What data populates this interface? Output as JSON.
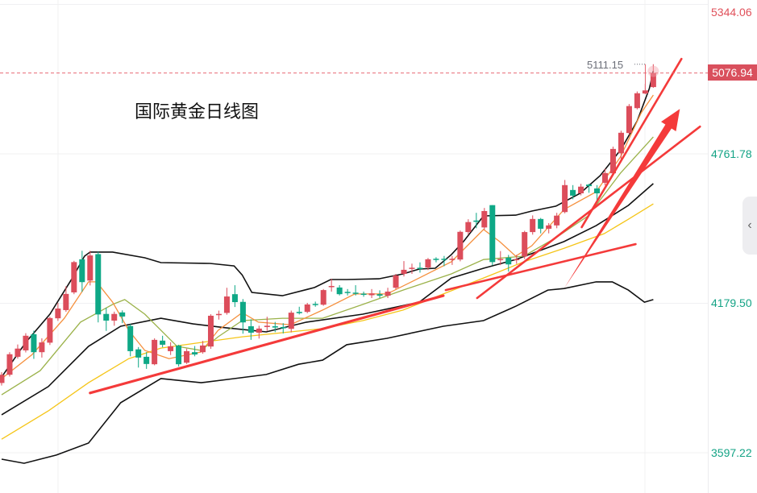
{
  "chart_data": {
    "type": "candlestick",
    "title": "国际黄金日线图",
    "y_ticks": [
      "5344.06",
      "4761.78",
      "4179.50",
      "3597.22"
    ],
    "y_tick_values": [
      5344.06,
      4761.78,
      4179.5,
      3597.22
    ],
    "ylim": [
      3540,
      5370
    ],
    "current_price": "5076.94",
    "current_price_value": 5076.94,
    "high_marker": "5111.15",
    "high_marker_value": 5111.15,
    "colors": {
      "up": "#dc4d5b",
      "down": "#0ea886",
      "upper_axis": "#e0505a",
      "axis_text": "#13a385",
      "trendline": "#f43a3a",
      "band": "#111111",
      "ma_yellow": "#f5c518",
      "ma_orange": "#f5903d",
      "ma_olive": "#9bb24a"
    },
    "candles_ohlc": [
      [
        3869,
        3911,
        3859,
        3901
      ],
      [
        3901,
        3989,
        3894,
        3981
      ],
      [
        3971,
        4019,
        3964,
        4003
      ],
      [
        3996,
        4063,
        3988,
        4053
      ],
      [
        4059,
        4073,
        3963,
        3989
      ],
      [
        3989,
        4043,
        3968,
        4027
      ],
      [
        4026,
        4127,
        4017,
        4122
      ],
      [
        4121,
        4181,
        4111,
        4159
      ],
      [
        4153,
        4246,
        4146,
        4216
      ],
      [
        4222,
        4345,
        4215,
        4340
      ],
      [
        4351,
        4384,
        4224,
        4262
      ],
      [
        4268,
        4384,
        4249,
        4366
      ],
      [
        4371,
        4380,
        4105,
        4136
      ],
      [
        4138,
        4162,
        4072,
        4112
      ],
      [
        4112,
        4147,
        4092,
        4138
      ],
      [
        4144,
        4152,
        4102,
        4128
      ],
      [
        4091,
        4098,
        3973,
        3993
      ],
      [
        4000,
        4009,
        3929,
        3968
      ],
      [
        3971,
        3989,
        3924,
        3943
      ],
      [
        3942,
        4043,
        3938,
        4037
      ],
      [
        4034,
        4053,
        4008,
        4018
      ],
      [
        3993,
        4028,
        3978,
        4012
      ],
      [
        4015,
        4018,
        3933,
        3942
      ],
      [
        3948,
        4003,
        3943,
        3993
      ],
      [
        3989,
        4013,
        3973,
        3980
      ],
      [
        3989,
        4033,
        3983,
        4015
      ],
      [
        4011,
        4137,
        4002,
        4131
      ],
      [
        4134,
        4151,
        4116,
        4138
      ],
      [
        4142,
        4240,
        4135,
        4206
      ],
      [
        4215,
        4250,
        4165,
        4184
      ],
      [
        4185,
        4196,
        4061,
        4105
      ],
      [
        4090,
        4117,
        4037,
        4065
      ],
      [
        4065,
        4092,
        4042,
        4081
      ],
      [
        4087,
        4127,
        4072,
        4092
      ],
      [
        4090,
        4107,
        4067,
        4085
      ],
      [
        4087,
        4102,
        4062,
        4082
      ],
      [
        4080,
        4151,
        4066,
        4143
      ],
      [
        4146,
        4166,
        4136,
        4141
      ],
      [
        4146,
        4181,
        4141,
        4175
      ],
      [
        4177,
        4186,
        4166,
        4173
      ],
      [
        4174,
        4235,
        4170,
        4231
      ],
      [
        4243,
        4275,
        4225,
        4247
      ],
      [
        4241,
        4250,
        4210,
        4215
      ],
      [
        4224,
        4235,
        4210,
        4220
      ],
      [
        4221,
        4250,
        4210,
        4217
      ],
      [
        4217,
        4225,
        4205,
        4213
      ],
      [
        4211,
        4235,
        4200,
        4218
      ],
      [
        4215,
        4230,
        4200,
        4209
      ],
      [
        4209,
        4240,
        4200,
        4225
      ],
      [
        4240,
        4294,
        4234,
        4288
      ],
      [
        4294,
        4344,
        4284,
        4310
      ],
      [
        4314,
        4334,
        4294,
        4318
      ],
      [
        4318,
        4339,
        4299,
        4314
      ],
      [
        4319,
        4356,
        4309,
        4351
      ],
      [
        4353,
        4359,
        4339,
        4349
      ],
      [
        4353,
        4364,
        4324,
        4349
      ],
      [
        4349,
        4364,
        4329,
        4353
      ],
      [
        4350,
        4463,
        4343,
        4458
      ],
      [
        4457,
        4507,
        4447,
        4496
      ],
      [
        4502,
        4532,
        4472,
        4497
      ],
      [
        4475,
        4551,
        4466,
        4539
      ],
      [
        4562,
        4562,
        4327,
        4340
      ],
      [
        4348,
        4383,
        4328,
        4352
      ],
      [
        4357,
        4368,
        4303,
        4331
      ],
      [
        4348,
        4368,
        4333,
        4352
      ],
      [
        4362,
        4462,
        4352,
        4457
      ],
      [
        4457,
        4522,
        4447,
        4508
      ],
      [
        4508,
        4512,
        4452,
        4470
      ],
      [
        4470,
        4492,
        4452,
        4483
      ],
      [
        4483,
        4532,
        4472,
        4521
      ],
      [
        4535,
        4660,
        4530,
        4640
      ],
      [
        4621,
        4640,
        4585,
        4599
      ],
      [
        4608,
        4645,
        4600,
        4634
      ],
      [
        4642,
        4645,
        4610,
        4636
      ],
      [
        4627,
        4640,
        4570,
        4608
      ],
      [
        4649,
        4704,
        4639,
        4687
      ],
      [
        4686,
        4790,
        4678,
        4781
      ],
      [
        4764,
        4852,
        4737,
        4844
      ],
      [
        4843,
        4956,
        4836,
        4948
      ],
      [
        4940,
        5005,
        4935,
        4998
      ],
      [
        4997,
        5034,
        4994,
        5009
      ],
      [
        5022,
        5111.15,
        5019,
        5076.94
      ]
    ],
    "series": [
      {
        "name": "boll-upper",
        "color_key": "band",
        "points": [
          [
            0,
            3892
          ],
          [
            3,
            4027
          ],
          [
            6,
            4137
          ],
          [
            8.8,
            4278
          ],
          [
            10.3,
            4363
          ],
          [
            11,
            4379
          ],
          [
            13.8,
            4379
          ],
          [
            17.8,
            4357
          ],
          [
            19.8,
            4338
          ],
          [
            25.9,
            4335
          ],
          [
            28.9,
            4325
          ],
          [
            29.9,
            4290
          ],
          [
            31.1,
            4222
          ],
          [
            34.9,
            4209
          ],
          [
            38.9,
            4241
          ],
          [
            40.9,
            4272
          ],
          [
            42.9,
            4272
          ],
          [
            46.9,
            4275
          ],
          [
            49.9,
            4294
          ],
          [
            51.9,
            4313
          ],
          [
            53.9,
            4316
          ],
          [
            55.9,
            4369
          ],
          [
            57.4,
            4420
          ],
          [
            59.9,
            4520
          ],
          [
            63.9,
            4523
          ],
          [
            65.9,
            4539
          ],
          [
            68.9,
            4558
          ],
          [
            71.9,
            4608
          ],
          [
            74.4,
            4677
          ],
          [
            77,
            4780
          ],
          [
            79,
            4890
          ],
          [
            80.5,
            5016
          ],
          [
            81,
            5085
          ]
        ]
      },
      {
        "name": "boll-middle",
        "color_key": "band",
        "points": [
          [
            0,
            3745
          ],
          [
            5.8,
            3855
          ],
          [
            10.8,
            4012
          ],
          [
            14.8,
            4090
          ],
          [
            19.8,
            4121
          ],
          [
            23.8,
            4099
          ],
          [
            27.9,
            4084
          ],
          [
            32.9,
            4068
          ],
          [
            37.9,
            4106
          ],
          [
            44.9,
            4137
          ],
          [
            51.9,
            4184
          ],
          [
            55.9,
            4278
          ],
          [
            59.9,
            4316
          ],
          [
            63.9,
            4350
          ],
          [
            69.9,
            4420
          ],
          [
            73.9,
            4482
          ],
          [
            77.9,
            4561
          ],
          [
            81,
            4646
          ]
        ]
      },
      {
        "name": "boll-lower",
        "color_key": "band",
        "points": [
          [
            0,
            3572
          ],
          [
            2.8,
            3556
          ],
          [
            6.8,
            3588
          ],
          [
            10.8,
            3635
          ],
          [
            14.8,
            3792
          ],
          [
            19.8,
            3886
          ],
          [
            24.8,
            3870
          ],
          [
            28.9,
            3886
          ],
          [
            32.9,
            3902
          ],
          [
            36.9,
            3942
          ],
          [
            39.9,
            3958
          ],
          [
            42.9,
            4018
          ],
          [
            47.9,
            4043
          ],
          [
            54.9,
            4090
          ],
          [
            59.9,
            4112
          ],
          [
            63.9,
            4168
          ],
          [
            67.9,
            4231
          ],
          [
            69.9,
            4237
          ],
          [
            73.9,
            4263
          ],
          [
            75.9,
            4263
          ],
          [
            77.9,
            4231
          ],
          [
            79.9,
            4184
          ],
          [
            81,
            4194
          ]
        ]
      },
      {
        "name": "ma-yellow",
        "color_key": "ma_yellow",
        "points": [
          [
            0,
            3650
          ],
          [
            5.8,
            3760
          ],
          [
            10.8,
            3870
          ],
          [
            15.8,
            3964
          ],
          [
            19.8,
            4005
          ],
          [
            24.8,
            4027
          ],
          [
            29.9,
            4049
          ],
          [
            34.9,
            4065
          ],
          [
            39.9,
            4081
          ],
          [
            44.9,
            4112
          ],
          [
            49.9,
            4153
          ],
          [
            54.9,
            4216
          ],
          [
            59.9,
            4278
          ],
          [
            64.9,
            4341
          ],
          [
            69.9,
            4394
          ],
          [
            74.9,
            4451
          ],
          [
            77.9,
            4507
          ],
          [
            81,
            4567
          ]
        ]
      },
      {
        "name": "ma-olive",
        "color_key": "ma_olive",
        "points": [
          [
            0,
            3823
          ],
          [
            4.8,
            3917
          ],
          [
            9.8,
            4106
          ],
          [
            13.8,
            4175
          ],
          [
            15.3,
            4194
          ],
          [
            17.8,
            4137
          ],
          [
            21.8,
            4012
          ],
          [
            24.8,
            3996
          ],
          [
            26.9,
            4049
          ],
          [
            29.9,
            4112
          ],
          [
            34.9,
            4121
          ],
          [
            39.9,
            4121
          ],
          [
            44.9,
            4175
          ],
          [
            49.9,
            4231
          ],
          [
            55.9,
            4294
          ],
          [
            59.9,
            4350
          ],
          [
            64.9,
            4363
          ],
          [
            68.9,
            4435
          ],
          [
            72.9,
            4520
          ],
          [
            76.9,
            4686
          ],
          [
            81,
            4828
          ]
        ]
      },
      {
        "name": "ma-orange",
        "color_key": "ma_orange",
        "points": [
          [
            0,
            3886
          ],
          [
            3.8,
            3980
          ],
          [
            7.8,
            4121
          ],
          [
            10.8,
            4263
          ],
          [
            11.8,
            4263
          ],
          [
            13.8,
            4184
          ],
          [
            15.8,
            4074
          ],
          [
            17.8,
            3996
          ],
          [
            20.8,
            3964
          ],
          [
            24.8,
            3990
          ],
          [
            26.9,
            4074
          ],
          [
            29.9,
            4143
          ],
          [
            31.9,
            4106
          ],
          [
            35.9,
            4096
          ],
          [
            39.9,
            4153
          ],
          [
            43.9,
            4216
          ],
          [
            47.9,
            4216
          ],
          [
            51.9,
            4278
          ],
          [
            55.9,
            4341
          ],
          [
            59.9,
            4467
          ],
          [
            61.9,
            4420
          ],
          [
            63.9,
            4363
          ],
          [
            65.9,
            4404
          ],
          [
            69.9,
            4545
          ],
          [
            73.9,
            4614
          ],
          [
            76.9,
            4749
          ],
          [
            79.5,
            4922
          ],
          [
            81,
            4991
          ]
        ]
      }
    ],
    "annotations": [
      {
        "type": "trendline",
        "from": [
          11,
          3830
        ],
        "to": [
          54.9,
          4209
        ],
        "weight": "thick"
      },
      {
        "type": "trendline",
        "from": [
          59.1,
          4200
        ],
        "to": [
          86.8,
          4868
        ],
        "weight": "medium"
      },
      {
        "type": "trendline",
        "from": [
          55.2,
          4231
        ],
        "to": [
          78.8,
          4410
        ],
        "weight": "medium"
      },
      {
        "type": "trendline",
        "from": [
          72.1,
          4476
        ],
        "to": [
          84.5,
          5132
        ],
        "weight": "medium"
      },
      {
        "type": "arrow",
        "from": [
          69.9,
          4237
        ],
        "to": [
          84.3,
          4937
        ]
      }
    ]
  }
}
